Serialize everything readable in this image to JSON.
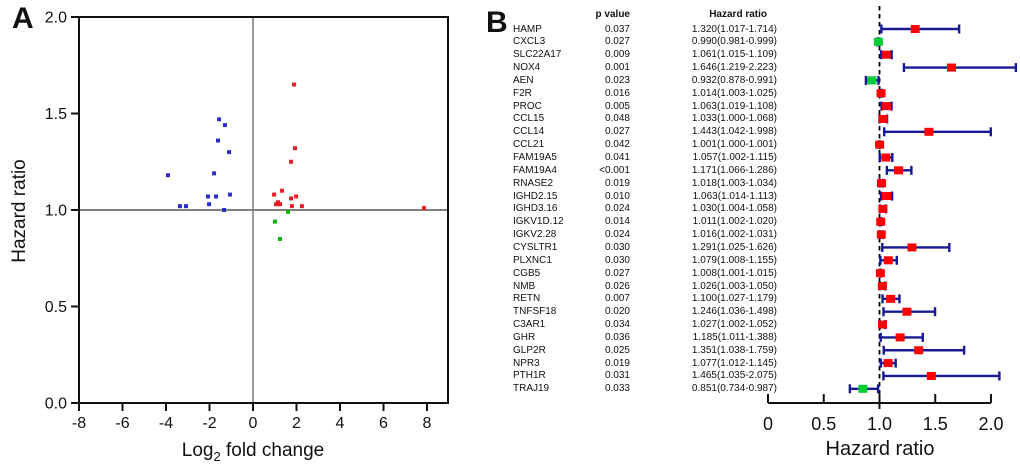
{
  "figure": {
    "panel_a_label": "A",
    "panel_b_label": "B"
  },
  "colors": {
    "scatter_blue": "#2D2DC8",
    "scatter_red": "#E81E24",
    "scatter_green": "#0FB30F",
    "forest_red": "#FF0000",
    "forest_green": "#00CC33",
    "ci_navy": "#181896",
    "ref_gray": "#808080",
    "axis_black": "#111111"
  },
  "chart_data": [
    {
      "type": "scatter",
      "panel": "A",
      "title": "",
      "xlabel": "Log₂ fold change",
      "xlabel_parts": {
        "base": "Log",
        "sub": "2",
        "rest": " fold change"
      },
      "ylabel": "Hazard ratio",
      "xlim": [
        -8,
        9
      ],
      "ylim": [
        0.0,
        2.0
      ],
      "xticks": [
        -8,
        -6,
        -4,
        -2,
        0,
        2,
        4,
        6,
        8
      ],
      "xtick_labels": [
        "-8",
        "-6",
        "-4",
        "-2",
        "0",
        "2",
        "4",
        "6",
        "8"
      ],
      "yticks": [
        2.0,
        1.5,
        1.0,
        0.5,
        0.0
      ],
      "ytick_labels": [
        "2.0",
        "1.5",
        "1.0",
        "0.5",
        "0.0"
      ],
      "ref_line_x": 0,
      "ref_line_y": 1.0,
      "grid": false,
      "series": [
        {
          "name": "blue-points",
          "color_key": "scatter_blue",
          "points": [
            [
              -3.91,
              1.18
            ],
            [
              -3.36,
              1.02
            ],
            [
              -3.08,
              1.02
            ],
            [
              -2.07,
              1.07
            ],
            [
              -2.02,
              1.03
            ],
            [
              -1.79,
              1.19
            ],
            [
              -1.7,
              1.07
            ],
            [
              -1.61,
              1.36
            ],
            [
              -1.56,
              1.47
            ],
            [
              -1.33,
              1.0
            ],
            [
              -1.29,
              1.44
            ],
            [
              -1.1,
              1.3
            ],
            [
              -1.06,
              1.08
            ]
          ]
        },
        {
          "name": "red-points",
          "color_key": "scatter_red",
          "points": [
            [
              1.89,
              1.65
            ],
            [
              1.93,
              1.32
            ],
            [
              1.75,
              1.25
            ],
            [
              1.33,
              1.1
            ],
            [
              0.97,
              1.08
            ],
            [
              1.06,
              1.03
            ],
            [
              1.15,
              1.04
            ],
            [
              1.24,
              1.03
            ],
            [
              1.75,
              1.06
            ],
            [
              1.98,
              1.07
            ],
            [
              1.79,
              1.02
            ],
            [
              2.25,
              1.02
            ],
            [
              7.86,
              1.01
            ]
          ]
        },
        {
          "name": "green-points",
          "color_key": "scatter_green",
          "points": [
            [
              1.61,
              0.99
            ],
            [
              1.01,
              0.94
            ],
            [
              1.24,
              0.85
            ]
          ]
        }
      ]
    },
    {
      "type": "forest",
      "panel": "B",
      "columns": [
        "p value",
        "Hazard ratio"
      ],
      "xlabel": "Hazard ratio",
      "xticks": [
        0,
        0.5,
        1.0,
        1.5,
        2.0
      ],
      "xtick_labels": [
        "0",
        "0.5",
        "1.0",
        "1.5",
        "2.0"
      ],
      "ref_line": 1.0,
      "rows": [
        {
          "gene": "HAMP",
          "p": "0.037",
          "hr_text": "1.320(1.017-1.714)",
          "hr": 1.32,
          "lo": 1.017,
          "hi": 1.714,
          "color": "red"
        },
        {
          "gene": "CXCL3",
          "p": "0.027",
          "hr_text": "0.990(0.981-0.999)",
          "hr": 0.99,
          "lo": 0.981,
          "hi": 0.999,
          "color": "green"
        },
        {
          "gene": "SLC22A17",
          "p": "0.009",
          "hr_text": "1.061(1.015-1.109)",
          "hr": 1.061,
          "lo": 1.015,
          "hi": 1.109,
          "color": "red"
        },
        {
          "gene": "NOX4",
          "p": "0.001",
          "hr_text": "1.646(1.219-2.223)",
          "hr": 1.646,
          "lo": 1.219,
          "hi": 2.223,
          "color": "red"
        },
        {
          "gene": "AEN",
          "p": "0.023",
          "hr_text": "0.932(0.878-0.991)",
          "hr": 0.932,
          "lo": 0.878,
          "hi": 0.991,
          "color": "green"
        },
        {
          "gene": "F2R",
          "p": "0.016",
          "hr_text": "1.014(1.003-1.025)",
          "hr": 1.014,
          "lo": 1.003,
          "hi": 1.025,
          "color": "red"
        },
        {
          "gene": "PROC",
          "p": "0.005",
          "hr_text": "1.063(1.019-1.108)",
          "hr": 1.063,
          "lo": 1.019,
          "hi": 1.108,
          "color": "red"
        },
        {
          "gene": "CCL15",
          "p": "0.048",
          "hr_text": "1.033(1.000-1.068)",
          "hr": 1.033,
          "lo": 1.0,
          "hi": 1.068,
          "color": "red"
        },
        {
          "gene": "CCL14",
          "p": "0.027",
          "hr_text": "1.443(1.042-1.998)",
          "hr": 1.443,
          "lo": 1.042,
          "hi": 1.998,
          "color": "red"
        },
        {
          "gene": "CCL21",
          "p": "0.042",
          "hr_text": "1.001(1.000-1.001)",
          "hr": 1.001,
          "lo": 1.0,
          "hi": 1.001,
          "color": "red"
        },
        {
          "gene": "FAM19A5",
          "p": "0.041",
          "hr_text": "1.057(1.002-1.115)",
          "hr": 1.057,
          "lo": 1.002,
          "hi": 1.115,
          "color": "red"
        },
        {
          "gene": "FAM19A4",
          "p": "<0.001",
          "hr_text": "1.171(1.066-1.286)",
          "hr": 1.171,
          "lo": 1.066,
          "hi": 1.286,
          "color": "red"
        },
        {
          "gene": "RNASE2",
          "p": "0.019",
          "hr_text": "1.018(1.003-1.034)",
          "hr": 1.018,
          "lo": 1.003,
          "hi": 1.034,
          "color": "red"
        },
        {
          "gene": "IGHD2.15",
          "p": "0.010",
          "hr_text": "1.063(1.014-1.113)",
          "hr": 1.063,
          "lo": 1.014,
          "hi": 1.113,
          "color": "red"
        },
        {
          "gene": "IGHD3.16",
          "p": "0.024",
          "hr_text": "1.030(1.004-1.058)",
          "hr": 1.03,
          "lo": 1.004,
          "hi": 1.058,
          "color": "red"
        },
        {
          "gene": "IGKV1D.12",
          "p": "0.014",
          "hr_text": "1.011(1.002-1.020)",
          "hr": 1.011,
          "lo": 1.002,
          "hi": 1.02,
          "color": "red"
        },
        {
          "gene": "IGKV2.28",
          "p": "0.024",
          "hr_text": "1.016(1.002-1.031)",
          "hr": 1.016,
          "lo": 1.002,
          "hi": 1.031,
          "color": "red"
        },
        {
          "gene": "CYSLTR1",
          "p": "0.030",
          "hr_text": "1.291(1.025-1.626)",
          "hr": 1.291,
          "lo": 1.025,
          "hi": 1.626,
          "color": "red"
        },
        {
          "gene": "PLXNC1",
          "p": "0.030",
          "hr_text": "1.079(1.008-1.155)",
          "hr": 1.079,
          "lo": 1.008,
          "hi": 1.155,
          "color": "red"
        },
        {
          "gene": "CGB5",
          "p": "0.027",
          "hr_text": "1.008(1.001-1.015)",
          "hr": 1.008,
          "lo": 1.001,
          "hi": 1.015,
          "color": "red"
        },
        {
          "gene": "NMB",
          "p": "0.026",
          "hr_text": "1.026(1.003-1.050)",
          "hr": 1.026,
          "lo": 1.003,
          "hi": 1.05,
          "color": "red"
        },
        {
          "gene": "RETN",
          "p": "0.007",
          "hr_text": "1.100(1.027-1.179)",
          "hr": 1.1,
          "lo": 1.027,
          "hi": 1.179,
          "color": "red"
        },
        {
          "gene": "TNFSF18",
          "p": "0.020",
          "hr_text": "1.246(1.036-1.498)",
          "hr": 1.246,
          "lo": 1.036,
          "hi": 1.498,
          "color": "red"
        },
        {
          "gene": "C3AR1",
          "p": "0.034",
          "hr_text": "1.027(1.002-1.052)",
          "hr": 1.027,
          "lo": 1.002,
          "hi": 1.052,
          "color": "red"
        },
        {
          "gene": "GHR",
          "p": "0.036",
          "hr_text": "1.185(1.011-1.388)",
          "hr": 1.185,
          "lo": 1.011,
          "hi": 1.388,
          "color": "red"
        },
        {
          "gene": "GLP2R",
          "p": "0.025",
          "hr_text": "1.351(1.038-1.759)",
          "hr": 1.351,
          "lo": 1.038,
          "hi": 1.759,
          "color": "red"
        },
        {
          "gene": "NPR3",
          "p": "0.019",
          "hr_text": "1.077(1.012-1.145)",
          "hr": 1.077,
          "lo": 1.012,
          "hi": 1.145,
          "color": "red"
        },
        {
          "gene": "PTH1R",
          "p": "0.031",
          "hr_text": "1.465(1.035-2.075)",
          "hr": 1.465,
          "lo": 1.035,
          "hi": 2.075,
          "color": "red"
        },
        {
          "gene": "TRAJ19",
          "p": "0.033",
          "hr_text": "0.851(0.734-0.987)",
          "hr": 0.851,
          "lo": 0.734,
          "hi": 0.987,
          "color": "green"
        }
      ]
    }
  ]
}
